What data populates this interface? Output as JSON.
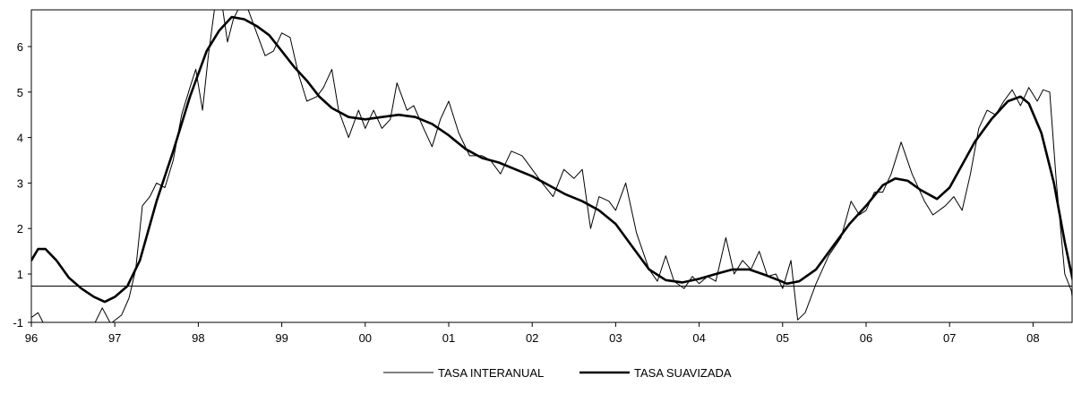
{
  "chart_data": {
    "type": "line",
    "title": "",
    "xlabel": "",
    "ylabel": "",
    "x_ticks": [
      "96",
      "97",
      "98",
      "99",
      "00",
      "01",
      "02",
      "03",
      "04",
      "05",
      "06",
      "07",
      "08"
    ],
    "y_ticks": [
      "-1",
      "1",
      "2",
      "3",
      "4",
      "5",
      "6"
    ],
    "ylim": [
      -1,
      6.7
    ],
    "xlim": [
      1996.0,
      2008.5
    ],
    "grid": false,
    "legend_position": "bottom",
    "reference_line": 0.5,
    "colors": {
      "line": "#000000",
      "axis": "#000000",
      "background": "#ffffff"
    },
    "series": [
      {
        "name": "TASA INTERANUAL",
        "style": "thin",
        "points": [
          [
            1996.0,
            -0.8
          ],
          [
            1996.08,
            -0.6
          ],
          [
            1996.17,
            -1.2
          ],
          [
            1996.5,
            -1.2
          ],
          [
            1996.75,
            -1.1
          ],
          [
            1996.85,
            -0.4
          ],
          [
            1996.95,
            -1.05
          ],
          [
            1997.08,
            -0.7
          ],
          [
            1997.17,
            0.0
          ],
          [
            1997.25,
            1.1
          ],
          [
            1997.33,
            2.5
          ],
          [
            1997.42,
            2.7
          ],
          [
            1997.5,
            3.0
          ],
          [
            1997.6,
            2.9
          ],
          [
            1997.7,
            3.5
          ],
          [
            1997.8,
            4.5
          ],
          [
            1997.9,
            5.1
          ],
          [
            1997.97,
            5.5
          ],
          [
            1998.05,
            4.6
          ],
          [
            1998.12,
            5.8
          ],
          [
            1998.2,
            6.9
          ],
          [
            1998.27,
            7.1
          ],
          [
            1998.35,
            6.1
          ],
          [
            1998.42,
            6.6
          ],
          [
            1998.5,
            6.9
          ],
          [
            1998.6,
            6.8
          ],
          [
            1998.7,
            6.3
          ],
          [
            1998.8,
            5.8
          ],
          [
            1998.9,
            5.9
          ],
          [
            1999.0,
            6.3
          ],
          [
            1999.1,
            6.2
          ],
          [
            1999.2,
            5.4
          ],
          [
            1999.3,
            4.8
          ],
          [
            1999.42,
            4.9
          ],
          [
            1999.5,
            5.1
          ],
          [
            1999.6,
            5.5
          ],
          [
            1999.68,
            4.6
          ],
          [
            1999.8,
            4.0
          ],
          [
            1999.92,
            4.6
          ],
          [
            2000.0,
            4.2
          ],
          [
            2000.1,
            4.6
          ],
          [
            2000.2,
            4.2
          ],
          [
            2000.3,
            4.4
          ],
          [
            2000.38,
            5.2
          ],
          [
            2000.5,
            4.6
          ],
          [
            2000.58,
            4.7
          ],
          [
            2000.7,
            4.2
          ],
          [
            2000.8,
            3.8
          ],
          [
            2000.9,
            4.4
          ],
          [
            2001.0,
            4.8
          ],
          [
            2001.12,
            4.1
          ],
          [
            2001.25,
            3.6
          ],
          [
            2001.4,
            3.6
          ],
          [
            2001.5,
            3.5
          ],
          [
            2001.62,
            3.2
          ],
          [
            2001.75,
            3.7
          ],
          [
            2001.88,
            3.6
          ],
          [
            2002.0,
            3.3
          ],
          [
            2002.12,
            3.0
          ],
          [
            2002.25,
            2.7
          ],
          [
            2002.38,
            3.3
          ],
          [
            2002.5,
            3.1
          ],
          [
            2002.6,
            3.3
          ],
          [
            2002.7,
            2.0
          ],
          [
            2002.8,
            2.7
          ],
          [
            2002.92,
            2.6
          ],
          [
            2003.0,
            2.4
          ],
          [
            2003.12,
            3.0
          ],
          [
            2003.25,
            1.9
          ],
          [
            2003.4,
            1.1
          ],
          [
            2003.5,
            0.7
          ],
          [
            2003.6,
            1.4
          ],
          [
            2003.7,
            0.7
          ],
          [
            2003.82,
            0.4
          ],
          [
            2003.92,
            0.9
          ],
          [
            2004.0,
            0.6
          ],
          [
            2004.1,
            0.9
          ],
          [
            2004.2,
            0.7
          ],
          [
            2004.32,
            1.8
          ],
          [
            2004.42,
            1.0
          ],
          [
            2004.52,
            1.3
          ],
          [
            2004.62,
            1.1
          ],
          [
            2004.72,
            1.5
          ],
          [
            2004.82,
            0.9
          ],
          [
            2004.92,
            1.0
          ],
          [
            2005.0,
            0.4
          ],
          [
            2005.1,
            1.3
          ],
          [
            2005.18,
            -0.9
          ],
          [
            2005.27,
            -0.6
          ],
          [
            2005.4,
            0.6
          ],
          [
            2005.55,
            1.4
          ],
          [
            2005.7,
            1.8
          ],
          [
            2005.82,
            2.6
          ],
          [
            2005.92,
            2.3
          ],
          [
            2006.0,
            2.4
          ],
          [
            2006.1,
            2.8
          ],
          [
            2006.2,
            2.8
          ],
          [
            2006.3,
            3.2
          ],
          [
            2006.42,
            3.9
          ],
          [
            2006.55,
            3.2
          ],
          [
            2006.7,
            2.6
          ],
          [
            2006.8,
            2.3
          ],
          [
            2006.95,
            2.5
          ],
          [
            2007.05,
            2.7
          ],
          [
            2007.15,
            2.4
          ],
          [
            2007.25,
            3.2
          ],
          [
            2007.35,
            4.2
          ],
          [
            2007.45,
            4.6
          ],
          [
            2007.55,
            4.5
          ],
          [
            2007.65,
            4.8
          ],
          [
            2007.75,
            5.05
          ],
          [
            2007.85,
            4.7
          ],
          [
            2007.95,
            5.1
          ],
          [
            2008.05,
            4.8
          ],
          [
            2008.12,
            5.05
          ],
          [
            2008.2,
            5.0
          ],
          [
            2008.28,
            3.0
          ],
          [
            2008.38,
            1.0
          ],
          [
            2008.46,
            0.3
          ],
          [
            2008.5,
            -1.0
          ]
        ]
      },
      {
        "name": "TASA SUAVIZADA",
        "style": "thick",
        "points": [
          [
            1996.0,
            1.3
          ],
          [
            1996.08,
            1.55
          ],
          [
            1996.17,
            1.55
          ],
          [
            1996.3,
            1.3
          ],
          [
            1996.45,
            0.85
          ],
          [
            1996.6,
            0.4
          ],
          [
            1996.75,
            0.05
          ],
          [
            1996.88,
            -0.15
          ],
          [
            1997.0,
            0.05
          ],
          [
            1997.15,
            0.5
          ],
          [
            1997.3,
            1.3
          ],
          [
            1997.5,
            2.6
          ],
          [
            1997.7,
            3.7
          ],
          [
            1997.9,
            4.9
          ],
          [
            1998.1,
            5.9
          ],
          [
            1998.25,
            6.35
          ],
          [
            1998.4,
            6.65
          ],
          [
            1998.55,
            6.6
          ],
          [
            1998.7,
            6.45
          ],
          [
            1998.85,
            6.25
          ],
          [
            1999.0,
            5.9
          ],
          [
            1999.15,
            5.55
          ],
          [
            1999.3,
            5.25
          ],
          [
            1999.45,
            4.9
          ],
          [
            1999.6,
            4.65
          ],
          [
            1999.8,
            4.45
          ],
          [
            2000.0,
            4.4
          ],
          [
            2000.2,
            4.45
          ],
          [
            2000.4,
            4.5
          ],
          [
            2000.6,
            4.45
          ],
          [
            2000.8,
            4.3
          ],
          [
            2001.0,
            4.05
          ],
          [
            2001.2,
            3.75
          ],
          [
            2001.4,
            3.55
          ],
          [
            2001.6,
            3.45
          ],
          [
            2001.8,
            3.3
          ],
          [
            2002.0,
            3.15
          ],
          [
            2002.2,
            2.95
          ],
          [
            2002.4,
            2.75
          ],
          [
            2002.6,
            2.6
          ],
          [
            2002.8,
            2.4
          ],
          [
            2003.0,
            2.1
          ],
          [
            2003.2,
            1.6
          ],
          [
            2003.4,
            1.1
          ],
          [
            2003.6,
            0.75
          ],
          [
            2003.8,
            0.65
          ],
          [
            2004.0,
            0.8
          ],
          [
            2004.2,
            1.0
          ],
          [
            2004.4,
            1.1
          ],
          [
            2004.6,
            1.1
          ],
          [
            2004.8,
            0.95
          ],
          [
            2004.95,
            0.75
          ],
          [
            2005.05,
            0.6
          ],
          [
            2005.2,
            0.7
          ],
          [
            2005.4,
            1.1
          ],
          [
            2005.6,
            1.6
          ],
          [
            2005.8,
            2.1
          ],
          [
            2006.0,
            2.5
          ],
          [
            2006.2,
            2.95
          ],
          [
            2006.35,
            3.1
          ],
          [
            2006.5,
            3.05
          ],
          [
            2006.65,
            2.85
          ],
          [
            2006.85,
            2.65
          ],
          [
            2007.0,
            2.9
          ],
          [
            2007.15,
            3.4
          ],
          [
            2007.3,
            3.9
          ],
          [
            2007.5,
            4.4
          ],
          [
            2007.7,
            4.8
          ],
          [
            2007.85,
            4.9
          ],
          [
            2007.95,
            4.75
          ],
          [
            2008.1,
            4.1
          ],
          [
            2008.25,
            3.0
          ],
          [
            2008.38,
            1.7
          ],
          [
            2008.5,
            0.35
          ]
        ]
      }
    ]
  }
}
